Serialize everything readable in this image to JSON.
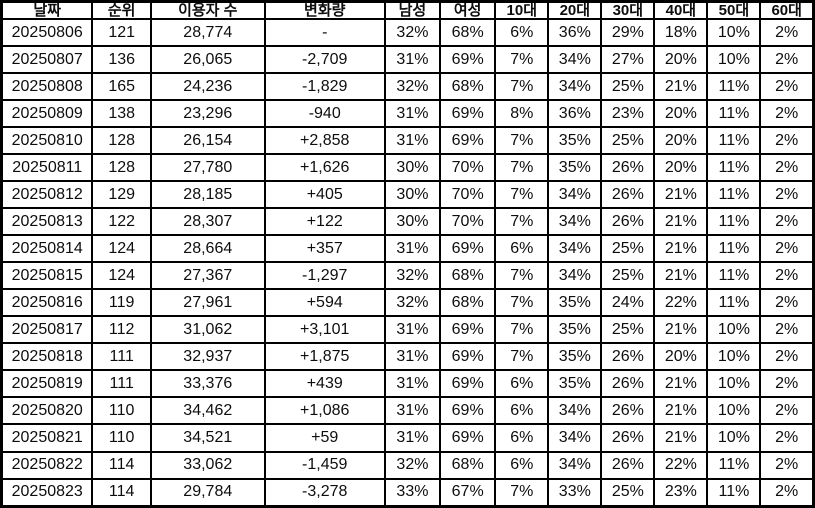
{
  "chart_data": {
    "type": "table",
    "columns": [
      {
        "id": "date",
        "label": "날짜"
      },
      {
        "id": "rank",
        "label": "순위"
      },
      {
        "id": "users",
        "label": "이용자 수"
      },
      {
        "id": "change",
        "label": "변화량"
      },
      {
        "id": "male",
        "label": "남성"
      },
      {
        "id": "female",
        "label": "여성"
      },
      {
        "id": "age10",
        "label": "10대"
      },
      {
        "id": "age20",
        "label": "20대"
      },
      {
        "id": "age30",
        "label": "30대"
      },
      {
        "id": "age40",
        "label": "40대"
      },
      {
        "id": "age50",
        "label": "50대"
      },
      {
        "id": "age60",
        "label": "60대"
      }
    ],
    "rows": [
      {
        "date": "20250806",
        "dateColor": "black",
        "rank": "121",
        "users": "28,774",
        "change": "-",
        "changeColor": "black",
        "male": "32%",
        "female": "68%",
        "age10": "6%",
        "age20": "36%",
        "age30": "29%",
        "age40": "18%",
        "age50": "10%",
        "age60": "2%"
      },
      {
        "date": "20250807",
        "dateColor": "black",
        "rank": "136",
        "users": "26,065",
        "change": "-2,709",
        "changeColor": "blue",
        "male": "31%",
        "female": "69%",
        "age10": "7%",
        "age20": "34%",
        "age30": "27%",
        "age40": "20%",
        "age50": "10%",
        "age60": "2%"
      },
      {
        "date": "20250808",
        "dateColor": "black",
        "rank": "165",
        "users": "24,236",
        "change": "-1,829",
        "changeColor": "blue",
        "male": "32%",
        "female": "68%",
        "age10": "7%",
        "age20": "34%",
        "age30": "25%",
        "age40": "21%",
        "age50": "11%",
        "age60": "2%"
      },
      {
        "date": "20250809",
        "dateColor": "blue",
        "rank": "138",
        "users": "23,296",
        "change": "-940",
        "changeColor": "blue",
        "male": "31%",
        "female": "69%",
        "age10": "8%",
        "age20": "36%",
        "age30": "23%",
        "age40": "20%",
        "age50": "11%",
        "age60": "2%"
      },
      {
        "date": "20250810",
        "dateColor": "red",
        "rank": "128",
        "users": "26,154",
        "change": "+2,858",
        "changeColor": "red",
        "male": "31%",
        "female": "69%",
        "age10": "7%",
        "age20": "35%",
        "age30": "25%",
        "age40": "20%",
        "age50": "11%",
        "age60": "2%"
      },
      {
        "date": "20250811",
        "dateColor": "black",
        "rank": "128",
        "users": "27,780",
        "change": "+1,626",
        "changeColor": "red",
        "male": "30%",
        "female": "70%",
        "age10": "7%",
        "age20": "35%",
        "age30": "26%",
        "age40": "20%",
        "age50": "11%",
        "age60": "2%"
      },
      {
        "date": "20250812",
        "dateColor": "black",
        "rank": "129",
        "users": "28,185",
        "change": "+405",
        "changeColor": "red",
        "male": "30%",
        "female": "70%",
        "age10": "7%",
        "age20": "34%",
        "age30": "26%",
        "age40": "21%",
        "age50": "11%",
        "age60": "2%"
      },
      {
        "date": "20250813",
        "dateColor": "black",
        "rank": "122",
        "users": "28,307",
        "change": "+122",
        "changeColor": "red",
        "male": "30%",
        "female": "70%",
        "age10": "7%",
        "age20": "34%",
        "age30": "26%",
        "age40": "21%",
        "age50": "11%",
        "age60": "2%"
      },
      {
        "date": "20250814",
        "dateColor": "black",
        "rank": "124",
        "users": "28,664",
        "change": "+357",
        "changeColor": "red",
        "male": "31%",
        "female": "69%",
        "age10": "6%",
        "age20": "34%",
        "age30": "25%",
        "age40": "21%",
        "age50": "11%",
        "age60": "2%"
      },
      {
        "date": "20250815",
        "dateColor": "black",
        "rank": "124",
        "users": "27,367",
        "change": "-1,297",
        "changeColor": "blue",
        "male": "32%",
        "female": "68%",
        "age10": "7%",
        "age20": "34%",
        "age30": "25%",
        "age40": "21%",
        "age50": "11%",
        "age60": "2%"
      },
      {
        "date": "20250816",
        "dateColor": "blue",
        "rank": "119",
        "users": "27,961",
        "change": "+594",
        "changeColor": "red",
        "male": "32%",
        "female": "68%",
        "age10": "7%",
        "age20": "35%",
        "age30": "24%",
        "age40": "22%",
        "age50": "11%",
        "age60": "2%"
      },
      {
        "date": "20250817",
        "dateColor": "red",
        "rank": "112",
        "users": "31,062",
        "change": "+3,101",
        "changeColor": "red",
        "male": "31%",
        "female": "69%",
        "age10": "7%",
        "age20": "35%",
        "age30": "25%",
        "age40": "21%",
        "age50": "10%",
        "age60": "2%"
      },
      {
        "date": "20250818",
        "dateColor": "black",
        "rank": "111",
        "users": "32,937",
        "change": "+1,875",
        "changeColor": "red",
        "male": "31%",
        "female": "69%",
        "age10": "7%",
        "age20": "35%",
        "age30": "26%",
        "age40": "20%",
        "age50": "10%",
        "age60": "2%"
      },
      {
        "date": "20250819",
        "dateColor": "black",
        "rank": "111",
        "users": "33,376",
        "change": "+439",
        "changeColor": "red",
        "male": "31%",
        "female": "69%",
        "age10": "6%",
        "age20": "35%",
        "age30": "26%",
        "age40": "21%",
        "age50": "10%",
        "age60": "2%"
      },
      {
        "date": "20250820",
        "dateColor": "black",
        "rank": "110",
        "users": "34,462",
        "change": "+1,086",
        "changeColor": "red",
        "male": "31%",
        "female": "69%",
        "age10": "6%",
        "age20": "34%",
        "age30": "26%",
        "age40": "21%",
        "age50": "10%",
        "age60": "2%"
      },
      {
        "date": "20250821",
        "dateColor": "black",
        "rank": "110",
        "users": "34,521",
        "change": "+59",
        "changeColor": "red",
        "male": "31%",
        "female": "69%",
        "age10": "6%",
        "age20": "34%",
        "age30": "26%",
        "age40": "21%",
        "age50": "10%",
        "age60": "2%"
      },
      {
        "date": "20250822",
        "dateColor": "black",
        "rank": "114",
        "users": "33,062",
        "change": "-1,459",
        "changeColor": "blue",
        "male": "32%",
        "female": "68%",
        "age10": "6%",
        "age20": "34%",
        "age30": "26%",
        "age40": "22%",
        "age50": "11%",
        "age60": "2%"
      },
      {
        "date": "20250823",
        "dateColor": "blue",
        "rank": "114",
        "users": "29,784",
        "change": "-3,278",
        "changeColor": "blue",
        "male": "33%",
        "female": "67%",
        "age10": "7%",
        "age20": "33%",
        "age30": "25%",
        "age40": "23%",
        "age50": "11%",
        "age60": "2%"
      }
    ]
  },
  "colors": {
    "positive_change_red": "#fb0505",
    "negative_change_blue": "#0b0bf5",
    "text": "#0d0d0d",
    "border": "#000000",
    "background": "#ffffff"
  }
}
